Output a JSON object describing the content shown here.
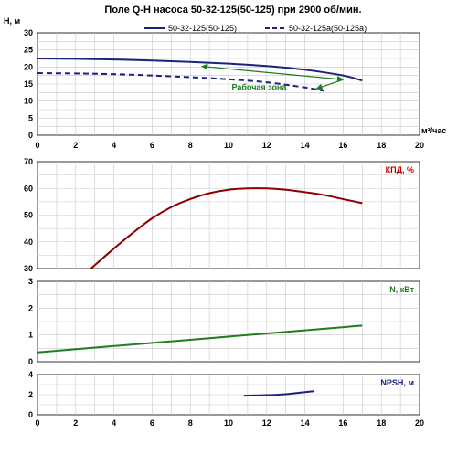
{
  "chart_data": [
    {
      "type": "line",
      "title": "Поле Q-H насоса 50-32-125(50-125) при 2900 об/мин.",
      "ylabel": "H, м",
      "xlabel": "м³/час",
      "xlim": [
        0,
        20
      ],
      "ylim": [
        0,
        30
      ],
      "x_ticks": [
        "0",
        "2",
        "4",
        "6",
        "8",
        "10",
        "12",
        "14",
        "16",
        "18",
        "20"
      ],
      "y_ticks": [
        "0",
        "5",
        "10",
        "15",
        "20",
        "25",
        "30"
      ],
      "grid": true,
      "legend": "top-right",
      "series": [
        {
          "name": "50-32-125(50-125)",
          "style": "solid",
          "color": "#1a237e",
          "x": [
            0,
            2,
            4,
            6,
            8,
            10,
            12,
            14,
            16,
            17
          ],
          "y": [
            22.5,
            22.4,
            22.2,
            21.9,
            21.5,
            21,
            20.3,
            19.2,
            17.5,
            16
          ]
        },
        {
          "name": "50-32-125a(50-125a)",
          "style": "dashed",
          "color": "#1a237e",
          "x": [
            0,
            2,
            4,
            6,
            8,
            10,
            12,
            14,
            15
          ],
          "y": [
            18.2,
            18.1,
            17.9,
            17.5,
            17,
            16.4,
            15.5,
            14,
            13
          ]
        }
      ],
      "annotation": {
        "text": "Рабочая зона",
        "color": "#1e7d1e",
        "zone": [
          [
            8.6,
            20.2
          ],
          [
            16,
            16.3
          ],
          [
            14.6,
            13.6
          ]
        ]
      }
    },
    {
      "type": "line",
      "ylabel": "КПД, %",
      "xlim": [
        0,
        20
      ],
      "ylim": [
        30,
        70
      ],
      "y_ticks": [
        "30",
        "40",
        "50",
        "60",
        "70"
      ],
      "grid": true,
      "series": [
        {
          "color": "#8b0000",
          "x": [
            2.8,
            4,
            5,
            6,
            7,
            8,
            9,
            10,
            11,
            12,
            13,
            14,
            15,
            16,
            17
          ],
          "y": [
            30,
            37.5,
            43.4,
            48.8,
            53,
            56,
            58.2,
            59.5,
            60,
            60,
            59.5,
            58.6,
            57.5,
            56,
            54.5
          ]
        }
      ]
    },
    {
      "type": "line",
      "ylabel": "N, кВт",
      "xlim": [
        0,
        20
      ],
      "ylim": [
        0,
        3
      ],
      "y_ticks": [
        "0",
        "1",
        "2",
        "3"
      ],
      "grid": true,
      "series": [
        {
          "color": "#1e7d1e",
          "x": [
            0,
            17
          ],
          "y": [
            0.35,
            1.35
          ]
        }
      ]
    },
    {
      "type": "line",
      "ylabel": "NPSH, м",
      "xlim": [
        0,
        20
      ],
      "ylim": [
        0,
        4
      ],
      "x_ticks": [
        "0",
        "2",
        "4",
        "6",
        "8",
        "10",
        "12",
        "14",
        "16",
        "18",
        "20"
      ],
      "y_ticks": [
        "0",
        "2",
        "4"
      ],
      "grid": true,
      "series": [
        {
          "color": "#1a237e",
          "x": [
            10.8,
            12,
            13,
            14,
            14.5
          ],
          "y": [
            1.9,
            1.95,
            2.05,
            2.25,
            2.35
          ]
        }
      ]
    }
  ]
}
